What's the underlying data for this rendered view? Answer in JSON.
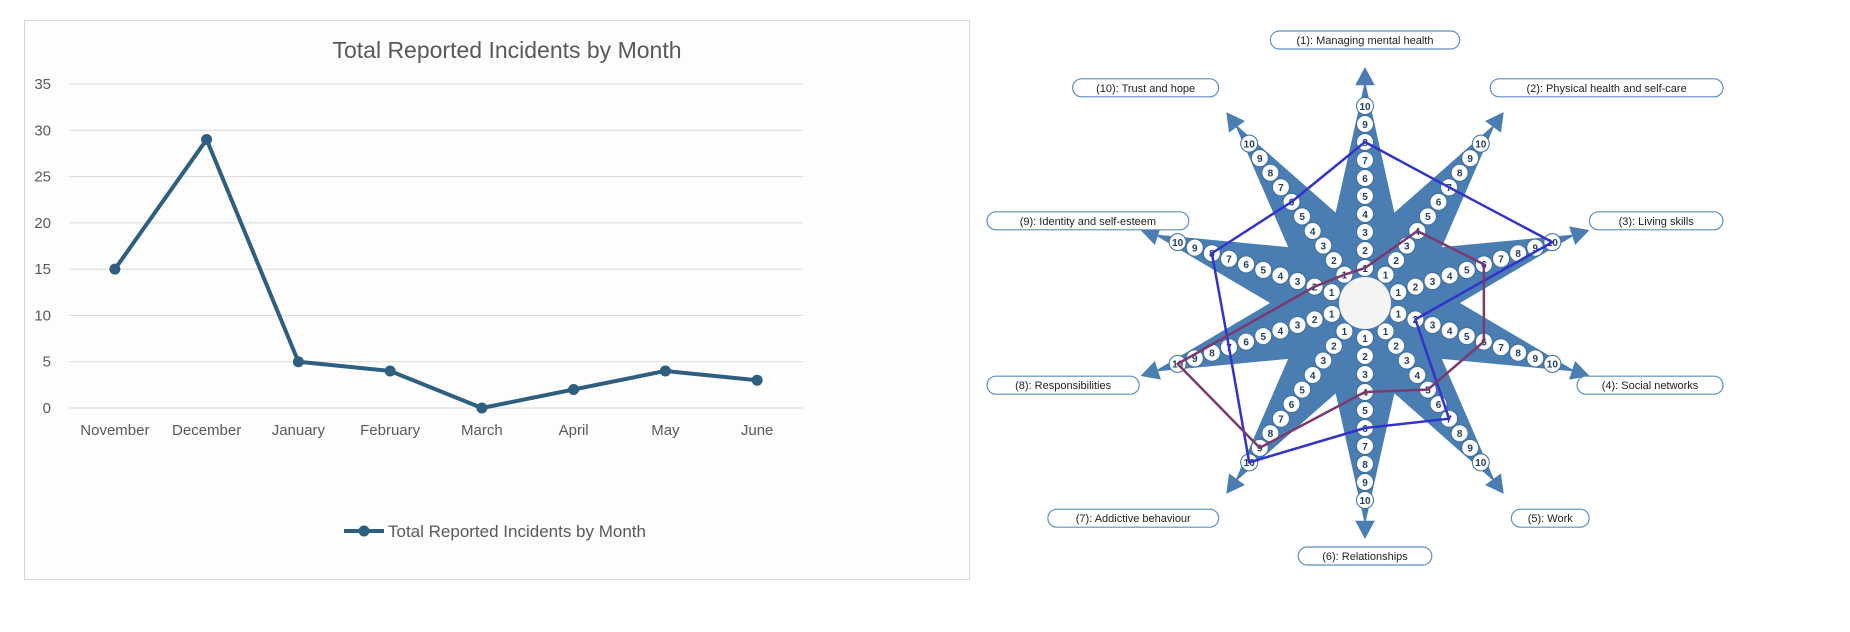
{
  "chart_data": [
    {
      "type": "line",
      "title": "Total Reported Incidents by Month",
      "categories": [
        "November",
        "December",
        "January",
        "February",
        "March",
        "April",
        "May",
        "June"
      ],
      "series": [
        {
          "name": "Total Reported Incidents by Month",
          "values": [
            15,
            29,
            5,
            4,
            0,
            2,
            4,
            3
          ],
          "color": "#2e5f80"
        }
      ],
      "xlabel": "",
      "ylabel": "",
      "ylim": [
        0,
        35
      ],
      "yticks": [
        "0",
        "5",
        "10",
        "15",
        "20",
        "25",
        "30",
        "35"
      ],
      "grid": true,
      "legend_position": "bottom"
    },
    {
      "type": "radar",
      "axes": [
        "(1): Managing mental health",
        "(2): Physical health and self-care",
        "(3): Living skills",
        "(4): Social networks",
        "(5): Work",
        "(6): Relationships",
        "(7): Addictive behaviour",
        "(8): Responsibilities",
        "(9): Identity and self-esteem",
        "(10): Trust and hope"
      ],
      "scale": [
        "1",
        "2",
        "3",
        "4",
        "5",
        "6",
        "7",
        "8",
        "9",
        "10"
      ],
      "scale_max": 10,
      "series": [
        {
          "values": [
            8,
            7,
            10,
            2,
            7,
            6,
            10,
            7,
            8,
            6
          ],
          "color": "#3333cc"
        },
        {
          "values": [
            1,
            4,
            6,
            6,
            5,
            4,
            9,
            10,
            2,
            1
          ],
          "color": "#7a3a6e"
        }
      ],
      "colors": {
        "star_fill": "#4a7eb3",
        "label_border": "#5b8ec4"
      }
    }
  ]
}
